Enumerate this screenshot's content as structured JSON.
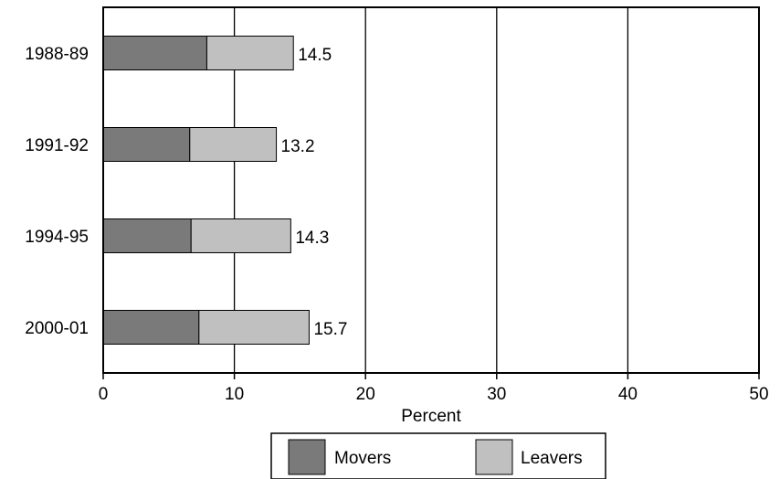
{
  "chart_data": {
    "type": "bar",
    "orientation": "horizontal",
    "stacked": true,
    "categories": [
      "1988-89",
      "1991-92",
      "1994-95",
      "2000-01"
    ],
    "series": [
      {
        "name": "Movers",
        "values": [
          7.9,
          6.6,
          6.7,
          7.3
        ],
        "color": "#7a7a7a"
      },
      {
        "name": "Leavers",
        "values": [
          6.6,
          6.6,
          7.6,
          8.4
        ],
        "color": "#c0c0c0"
      }
    ],
    "totals": [
      "14.5",
      "13.2",
      "14.3",
      "15.7"
    ],
    "xlabel": "Percent",
    "xlim": [
      0,
      50
    ],
    "xticks": [
      "0",
      "10",
      "20",
      "30",
      "40",
      "50"
    ],
    "grid": true,
    "legend_position": "bottom"
  }
}
